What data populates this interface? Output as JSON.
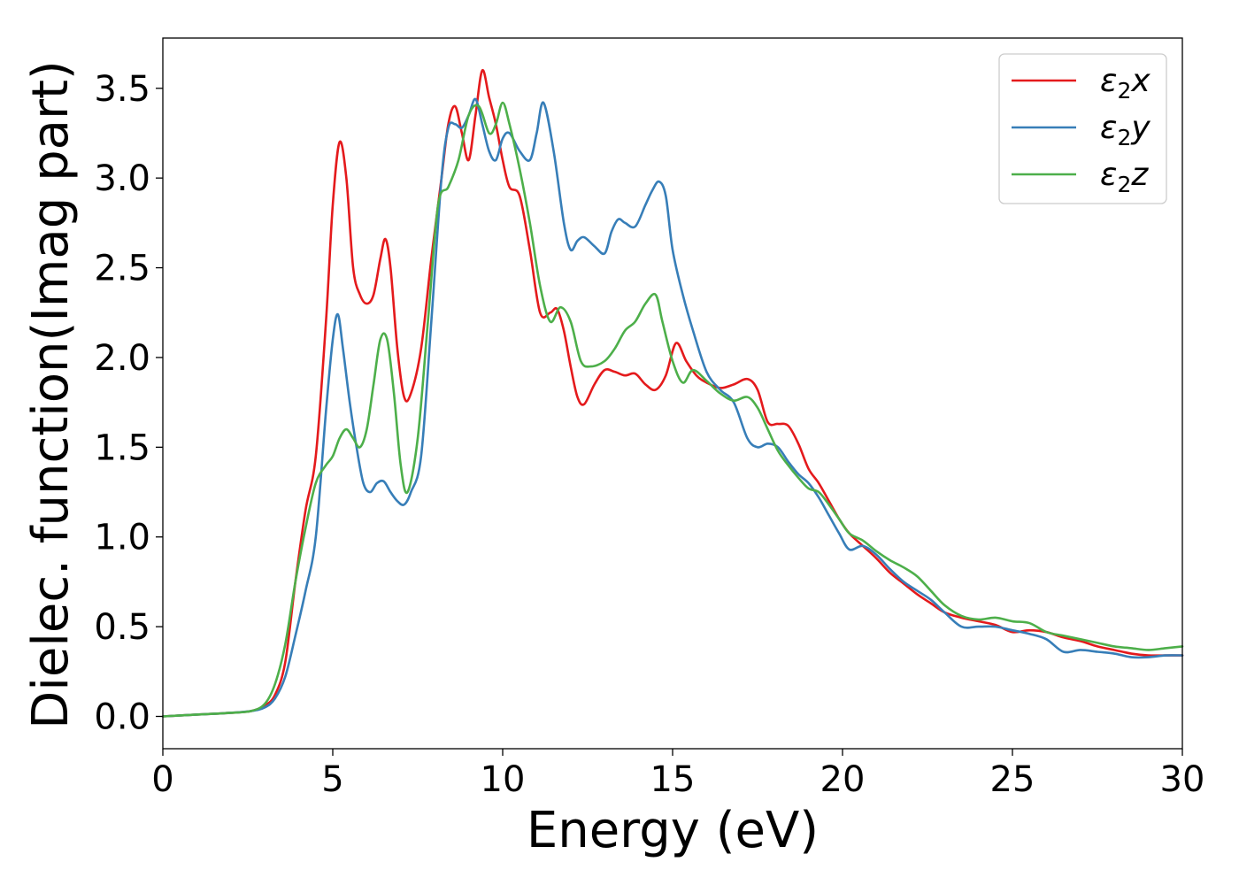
{
  "chart_data": {
    "type": "line",
    "xlabel": "Energy (eV)",
    "ylabel": "Dielec. function(Imag part)",
    "xlim": [
      0,
      30
    ],
    "ylim": [
      -0.18,
      3.78
    ],
    "xticks": [
      "0",
      "5",
      "10",
      "15",
      "20",
      "25",
      "30"
    ],
    "yticks": [
      "0.0",
      "0.5",
      "1.0",
      "1.5",
      "2.0",
      "2.5",
      "3.0",
      "3.5"
    ],
    "legend_position": "top-right",
    "grid": false,
    "series": [
      {
        "name": "ε2x",
        "legend": {
          "sym": "ε",
          "sub": "2",
          "suffix": "x"
        },
        "color": "#e41a1c",
        "x": [
          0,
          1,
          2,
          2.6,
          3.0,
          3.3,
          3.6,
          3.9,
          4.2,
          4.5,
          4.8,
          5.0,
          5.2,
          5.4,
          5.6,
          5.8,
          6.0,
          6.2,
          6.4,
          6.55,
          6.7,
          6.9,
          7.1,
          7.3,
          7.6,
          7.9,
          8.2,
          8.4,
          8.6,
          8.8,
          9.0,
          9.2,
          9.4,
          9.6,
          9.8,
          10.0,
          10.2,
          10.5,
          10.8,
          11.1,
          11.4,
          11.6,
          11.8,
          12.0,
          12.2,
          12.4,
          12.7,
          13.0,
          13.3,
          13.6,
          13.9,
          14.2,
          14.5,
          14.8,
          15.1,
          15.4,
          15.7,
          16.0,
          16.4,
          16.8,
          17.2,
          17.5,
          17.8,
          18.1,
          18.4,
          18.7,
          19.0,
          19.3,
          19.6,
          19.9,
          20.2,
          20.6,
          21.0,
          21.4,
          21.8,
          22.2,
          22.6,
          23.0,
          23.5,
          24.0,
          24.5,
          25.0,
          25.5,
          26.0,
          26.5,
          27.0,
          27.5,
          28.0,
          28.5,
          29.0,
          29.5,
          30.0
        ],
        "y": [
          0.0,
          0.01,
          0.02,
          0.03,
          0.06,
          0.12,
          0.3,
          0.75,
          1.15,
          1.45,
          2.2,
          2.85,
          3.2,
          3.0,
          2.5,
          2.35,
          2.3,
          2.35,
          2.55,
          2.66,
          2.5,
          2.05,
          1.78,
          1.8,
          2.05,
          2.55,
          3.0,
          3.3,
          3.4,
          3.25,
          3.1,
          3.35,
          3.6,
          3.45,
          3.3,
          3.1,
          2.95,
          2.9,
          2.6,
          2.25,
          2.25,
          2.27,
          2.15,
          1.95,
          1.78,
          1.74,
          1.85,
          1.93,
          1.92,
          1.9,
          1.91,
          1.85,
          1.82,
          1.9,
          2.08,
          1.98,
          1.9,
          1.86,
          1.83,
          1.85,
          1.88,
          1.82,
          1.64,
          1.63,
          1.62,
          1.52,
          1.38,
          1.3,
          1.2,
          1.1,
          1.02,
          0.95,
          0.88,
          0.8,
          0.74,
          0.68,
          0.63,
          0.58,
          0.55,
          0.53,
          0.51,
          0.47,
          0.48,
          0.47,
          0.44,
          0.42,
          0.39,
          0.37,
          0.35,
          0.34,
          0.34,
          0.34
        ]
      },
      {
        "name": "ε2y",
        "legend": {
          "sym": "ε",
          "sub": "2",
          "suffix": "y"
        },
        "color": "#377eb8",
        "x": [
          0,
          1,
          2,
          2.6,
          3.0,
          3.3,
          3.6,
          3.9,
          4.2,
          4.5,
          4.8,
          5.0,
          5.15,
          5.3,
          5.5,
          5.7,
          5.9,
          6.1,
          6.3,
          6.5,
          6.7,
          6.9,
          7.1,
          7.3,
          7.6,
          7.9,
          8.2,
          8.4,
          8.6,
          8.8,
          9.0,
          9.2,
          9.4,
          9.6,
          9.8,
          10.0,
          10.2,
          10.5,
          10.8,
          11.0,
          11.2,
          11.5,
          11.8,
          12.0,
          12.2,
          12.4,
          12.7,
          13.0,
          13.2,
          13.4,
          13.6,
          13.9,
          14.2,
          14.4,
          14.6,
          14.8,
          15.0,
          15.3,
          15.6,
          16.0,
          16.4,
          16.8,
          17.2,
          17.5,
          17.8,
          18.1,
          18.4,
          18.7,
          19.0,
          19.3,
          19.6,
          19.9,
          20.2,
          20.6,
          21.0,
          21.4,
          21.8,
          22.2,
          22.6,
          23.0,
          23.5,
          24.0,
          24.5,
          25.0,
          25.5,
          26.0,
          26.5,
          27.0,
          27.5,
          28.0,
          28.5,
          29.0,
          29.5,
          30.0
        ],
        "y": [
          0.0,
          0.01,
          0.02,
          0.03,
          0.05,
          0.1,
          0.22,
          0.45,
          0.7,
          1.0,
          1.7,
          2.1,
          2.24,
          2.05,
          1.75,
          1.5,
          1.3,
          1.25,
          1.3,
          1.31,
          1.25,
          1.2,
          1.18,
          1.25,
          1.45,
          2.2,
          3.0,
          3.28,
          3.3,
          3.28,
          3.35,
          3.44,
          3.3,
          3.15,
          3.1,
          3.22,
          3.25,
          3.15,
          3.1,
          3.25,
          3.42,
          3.15,
          2.75,
          2.6,
          2.65,
          2.67,
          2.62,
          2.58,
          2.7,
          2.77,
          2.75,
          2.73,
          2.85,
          2.93,
          2.98,
          2.9,
          2.6,
          2.35,
          2.15,
          1.92,
          1.82,
          1.75,
          1.55,
          1.5,
          1.52,
          1.5,
          1.42,
          1.35,
          1.3,
          1.22,
          1.12,
          1.02,
          0.93,
          0.95,
          0.9,
          0.82,
          0.75,
          0.7,
          0.65,
          0.58,
          0.5,
          0.5,
          0.5,
          0.48,
          0.46,
          0.43,
          0.36,
          0.37,
          0.36,
          0.35,
          0.33,
          0.33,
          0.34,
          0.34
        ]
      },
      {
        "name": "ε2z",
        "legend": {
          "sym": "ε",
          "sub": "2",
          "suffix": "z"
        },
        "color": "#4daf4a",
        "x": [
          0,
          1,
          2,
          2.6,
          3.0,
          3.3,
          3.6,
          3.9,
          4.2,
          4.5,
          4.8,
          5.0,
          5.2,
          5.4,
          5.6,
          5.8,
          6.0,
          6.2,
          6.4,
          6.6,
          6.8,
          7.0,
          7.2,
          7.5,
          7.8,
          8.1,
          8.4,
          8.7,
          9.0,
          9.3,
          9.6,
          9.8,
          10.0,
          10.2,
          10.5,
          10.8,
          11.1,
          11.4,
          11.7,
          12.0,
          12.3,
          12.6,
          13.0,
          13.3,
          13.6,
          13.9,
          14.2,
          14.5,
          14.7,
          15.0,
          15.3,
          15.6,
          16.0,
          16.4,
          16.8,
          17.2,
          17.5,
          17.8,
          18.1,
          18.4,
          18.7,
          19.0,
          19.3,
          19.6,
          19.9,
          20.2,
          20.6,
          21.0,
          21.4,
          21.8,
          22.2,
          22.6,
          23.0,
          23.5,
          24.0,
          24.5,
          25.0,
          25.5,
          26.0,
          26.5,
          27.0,
          27.5,
          28.0,
          28.5,
          29.0,
          29.5,
          30.0
        ],
        "y": [
          0.0,
          0.01,
          0.02,
          0.03,
          0.07,
          0.18,
          0.4,
          0.75,
          1.05,
          1.3,
          1.4,
          1.45,
          1.55,
          1.6,
          1.55,
          1.5,
          1.6,
          1.85,
          2.1,
          2.1,
          1.8,
          1.4,
          1.25,
          1.55,
          2.2,
          2.85,
          2.95,
          3.1,
          3.35,
          3.4,
          3.25,
          3.3,
          3.42,
          3.3,
          3.05,
          2.75,
          2.4,
          2.2,
          2.28,
          2.2,
          1.98,
          1.95,
          1.98,
          2.05,
          2.15,
          2.2,
          2.3,
          2.35,
          2.2,
          1.98,
          1.86,
          1.93,
          1.87,
          1.8,
          1.76,
          1.78,
          1.72,
          1.6,
          1.48,
          1.4,
          1.33,
          1.27,
          1.25,
          1.18,
          1.1,
          1.02,
          0.98,
          0.92,
          0.87,
          0.83,
          0.78,
          0.7,
          0.62,
          0.56,
          0.54,
          0.55,
          0.53,
          0.52,
          0.47,
          0.45,
          0.43,
          0.41,
          0.39,
          0.38,
          0.37,
          0.38,
          0.39
        ]
      }
    ]
  }
}
